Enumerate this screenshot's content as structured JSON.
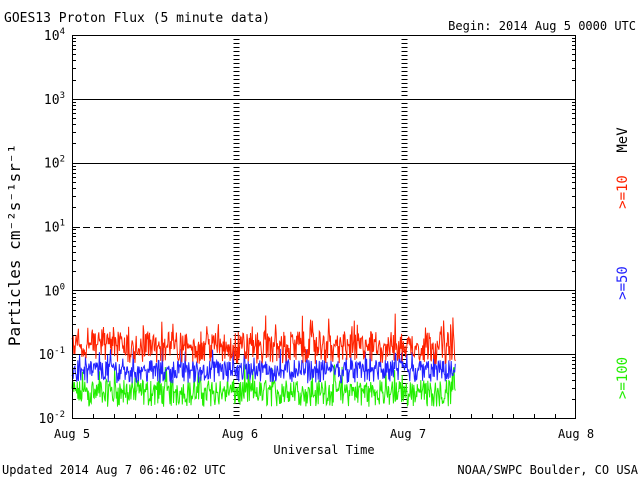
{
  "header": {
    "title": "GOES13 Proton Flux (5 minute data)",
    "begin": "Begin: 2014 Aug 5 0000 UTC"
  },
  "footer": {
    "updated": "Updated 2014 Aug  7 06:46:02 UTC",
    "credit": "NOAA/SWPC Boulder, CO USA"
  },
  "legend": {
    "unit": "MeV",
    "entries": [
      {
        "label": ">=10",
        "color": "#ff2200"
      },
      {
        "label": ">=50",
        "color": "#2222ff"
      },
      {
        "label": ">=100",
        "color": "#22ee00"
      }
    ]
  },
  "chart_data": {
    "type": "line",
    "title": "GOES13 Proton Flux (5 minute data)",
    "xlabel": "Universal Time",
    "ylabel": "Particles cm⁻²s⁻¹sr⁻¹",
    "y_scale": "log",
    "ylim": [
      0.01,
      10000
    ],
    "y_tick_labels": [
      {
        "base": "10",
        "exp": "-2"
      },
      {
        "base": "10",
        "exp": "-1"
      },
      {
        "base": "10",
        "exp": "0"
      },
      {
        "base": "10",
        "exp": "1"
      },
      {
        "base": "10",
        "exp": "2"
      },
      {
        "base": "10",
        "exp": "3"
      },
      {
        "base": "10",
        "exp": "4"
      }
    ],
    "x_tick_labels": [
      "Aug 5",
      "Aug 6",
      "Aug 7",
      "Aug 8"
    ],
    "xlim": [
      "2014-08-05 00:00",
      "2014-08-08 00:00"
    ],
    "threshold_line": 10,
    "series": [
      {
        "name": ">=10",
        "color": "#ff2200",
        "typical": 0.13,
        "range": [
          0.07,
          0.45
        ]
      },
      {
        "name": ">=50",
        "color": "#2222ff",
        "typical": 0.055,
        "range": [
          0.035,
          0.13
        ]
      },
      {
        "name": ">=100",
        "color": "#22ee00",
        "typical": 0.025,
        "range": [
          0.015,
          0.07
        ]
      }
    ],
    "data_end": "2014-08-07 06:45"
  }
}
